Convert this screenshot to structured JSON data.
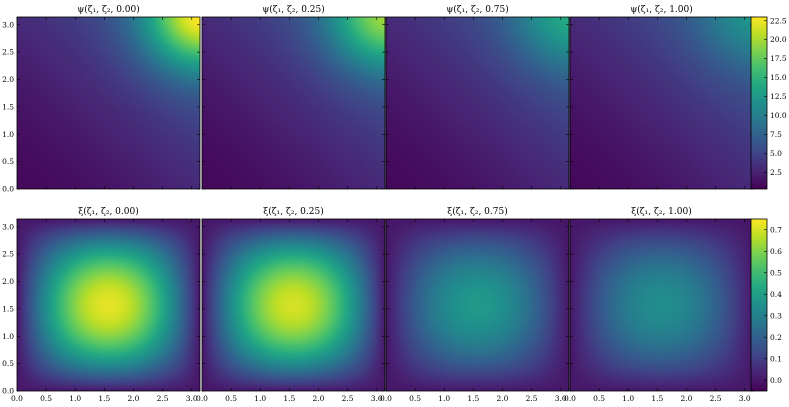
{
  "chart_data": {
    "type": "heatmap",
    "colormap": "viridis",
    "grid": false,
    "x_ticks": [
      "0.0",
      "0.5",
      "1.0",
      "1.5",
      "2.0",
      "2.5",
      "3.0"
    ],
    "y_ticks": [
      "0.0",
      "0.5",
      "1.0",
      "1.5",
      "2.0",
      "2.5",
      "3.0"
    ],
    "xlim": [
      0,
      3.14159
    ],
    "ylim": [
      0,
      3.14159
    ],
    "rows": [
      {
        "row": "psi",
        "colorbar": {
          "min": 0.3,
          "max": 23.0,
          "ticks": [
            "2.5",
            "5.0",
            "7.5",
            "10.0",
            "12.5",
            "15.0",
            "17.5",
            "20.0",
            "22.5"
          ]
        },
        "panels": [
          {
            "title": "ψ(ζ₁, ζ₂, 0.00)",
            "t": 0.0,
            "min": 0.3,
            "max": 23.0
          },
          {
            "title": "ψ(ζ₁, ζ₂, 0.25)",
            "t": 0.25,
            "min": 0.3,
            "max": 19.5
          },
          {
            "title": "ψ(ζ₁, ζ₂, 0.75)",
            "t": 0.75,
            "min": 0.3,
            "max": 14.0
          },
          {
            "title": "ψ(ζ₁, ζ₂, 1.00)",
            "t": 1.0,
            "min": 0.3,
            "max": 12.0
          }
        ]
      },
      {
        "row": "xi",
        "colorbar": {
          "min": -0.05,
          "max": 0.75,
          "ticks": [
            "0.0",
            "0.1",
            "0.2",
            "0.3",
            "0.4",
            "0.5",
            "0.6",
            "0.7"
          ]
        },
        "panels": [
          {
            "title": "ξ(ζ₁, ζ₂, 0.00)",
            "t": 0.0,
            "peak": 0.72
          },
          {
            "title": "ξ(ζ₁, ζ₂, 0.25)",
            "t": 0.25,
            "peak": 0.7
          },
          {
            "title": "ξ(ζ₁, ζ₂, 0.75)",
            "t": 0.75,
            "peak": 0.38
          },
          {
            "title": "ξ(ζ₁, ζ₂, 1.00)",
            "t": 1.0,
            "peak": 0.34
          }
        ]
      }
    ]
  }
}
